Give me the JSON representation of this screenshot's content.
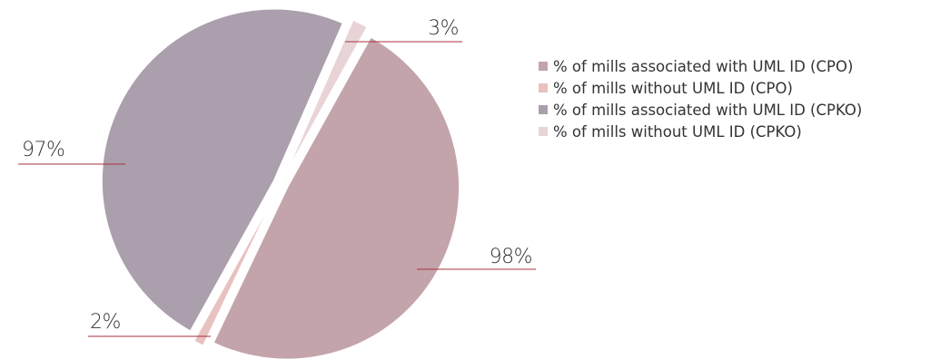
{
  "chart_data": {
    "type": "pie",
    "title": "",
    "slices": [
      {
        "name": "% of mills associated with UML ID (CPO)",
        "value": 98,
        "label": "98%",
        "color": "#c3a4ab"
      },
      {
        "name": "% of mills without UML ID (CPO)",
        "value": 2,
        "label": "2%",
        "color": "#e8c1c0"
      },
      {
        "name": "% of mills associated with UML ID (CPKO)",
        "value": 97,
        "label": "97%",
        "color": "#ab9fad"
      },
      {
        "name": "% of mills without UML ID (CPKO)",
        "value": 3,
        "label": "3%",
        "color": "#e8d4d6"
      }
    ],
    "legend_position": "right"
  }
}
